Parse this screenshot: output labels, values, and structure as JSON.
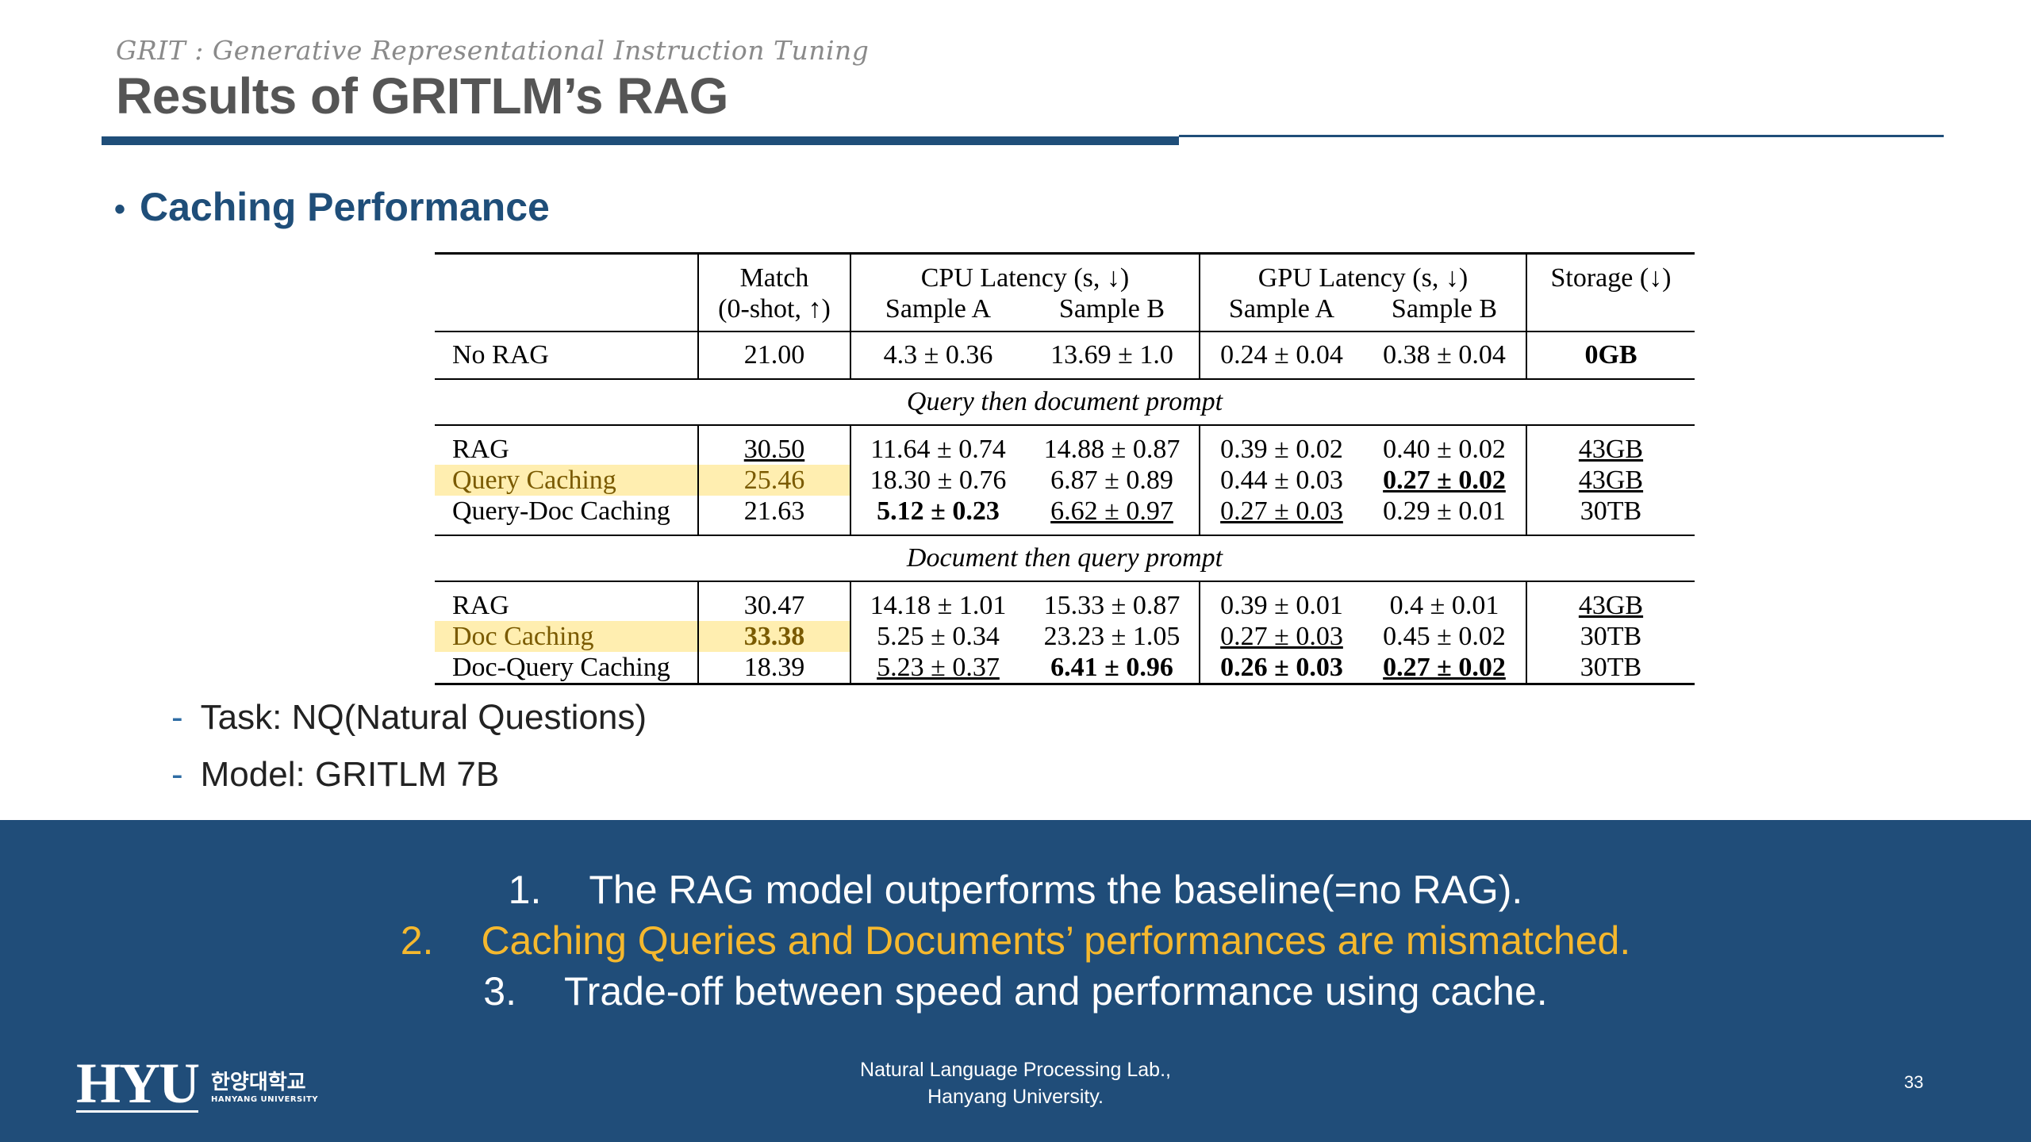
{
  "header": {
    "subtitle": "GRIT : Generative Representational Instruction Tuning",
    "title": "Results of GRITLM’s RAG"
  },
  "bullet": {
    "label": "Caching Performance"
  },
  "table": {
    "headers": {
      "match_top": "Match",
      "match_bottom": "(0-shot, ↑)",
      "cpu": "CPU Latency (s, ↓)",
      "gpu": "GPU Latency (s, ↓)",
      "storage": "Storage (↓)",
      "sample_a": "Sample A",
      "sample_b": "Sample B"
    },
    "no_rag": {
      "label": "No RAG",
      "match": "21.00",
      "cpu_a": "4.3 ± 0.36",
      "cpu_b": "13.69 ± 1.0",
      "gpu_a": "0.24 ± 0.04",
      "gpu_b": "0.38 ± 0.04",
      "storage": "0GB"
    },
    "section1": {
      "title": "Query then document prompt",
      "rows": [
        {
          "label": "RAG",
          "match": "30.50",
          "cpu_a": "11.64 ± 0.74",
          "cpu_b": "14.88 ± 0.87",
          "gpu_a": "0.39 ± 0.02",
          "gpu_b": "0.40 ± 0.02",
          "storage": "43GB"
        },
        {
          "label": "Query Caching",
          "match": "25.46",
          "cpu_a": "18.30 ± 0.76",
          "cpu_b": "6.87 ± 0.89",
          "gpu_a": "0.44 ± 0.03",
          "gpu_b": "0.27 ± 0.02",
          "storage": "43GB"
        },
        {
          "label": "Query-Doc Caching",
          "match": "21.63",
          "cpu_a": "5.12 ± 0.23",
          "cpu_b": "6.62 ± 0.97",
          "gpu_a": "0.27 ± 0.03",
          "gpu_b": "0.29 ± 0.01",
          "storage": "30TB"
        }
      ]
    },
    "section2": {
      "title": "Document then query prompt",
      "rows": [
        {
          "label": "RAG",
          "match": "30.47",
          "cpu_a": "14.18 ± 1.01",
          "cpu_b": "15.33 ± 0.87",
          "gpu_a": "0.39 ± 0.01",
          "gpu_b": "0.4 ± 0.01",
          "storage": "43GB"
        },
        {
          "label": "Doc Caching",
          "match": "33.38",
          "cpu_a": "5.25 ± 0.34",
          "cpu_b": "23.23 ± 1.05",
          "gpu_a": "0.27 ± 0.03",
          "gpu_b": "0.45 ± 0.02",
          "storage": "30TB"
        },
        {
          "label": "Doc-Query Caching",
          "match": "18.39",
          "cpu_a": "5.23 ± 0.37",
          "cpu_b": "6.41 ± 0.96",
          "gpu_a": "0.26 ± 0.03",
          "gpu_b": "0.27 ± 0.02",
          "storage": "30TB"
        }
      ]
    },
    "highlight_color": "#ffeeb0"
  },
  "notes": [
    {
      "dash": "-",
      "text": "Task: NQ(Natural Questions)"
    },
    {
      "dash": "-",
      "text": "Model: GRITLM 7B"
    }
  ],
  "conclusions": [
    {
      "num": "1.",
      "text": "The RAG model outperforms the baseline(=no RAG)."
    },
    {
      "num": "2.",
      "text": "Caching Queries and Documents’ performances are mismatched."
    },
    {
      "num": "3.",
      "text": "Trade-off between speed and performance using cache."
    }
  ],
  "footer": {
    "logo_text": "HYU",
    "logo_korean": "한양대학교",
    "logo_english": "HANYANG UNIVERSITY",
    "lab_line1": "Natural Language Processing Lab.,",
    "lab_line2": "Hanyang University.",
    "page_number": "33"
  },
  "colors": {
    "brand_blue": "#1f4e79",
    "band_blue": "#204d79",
    "highlight_text": "#f5b82e"
  }
}
